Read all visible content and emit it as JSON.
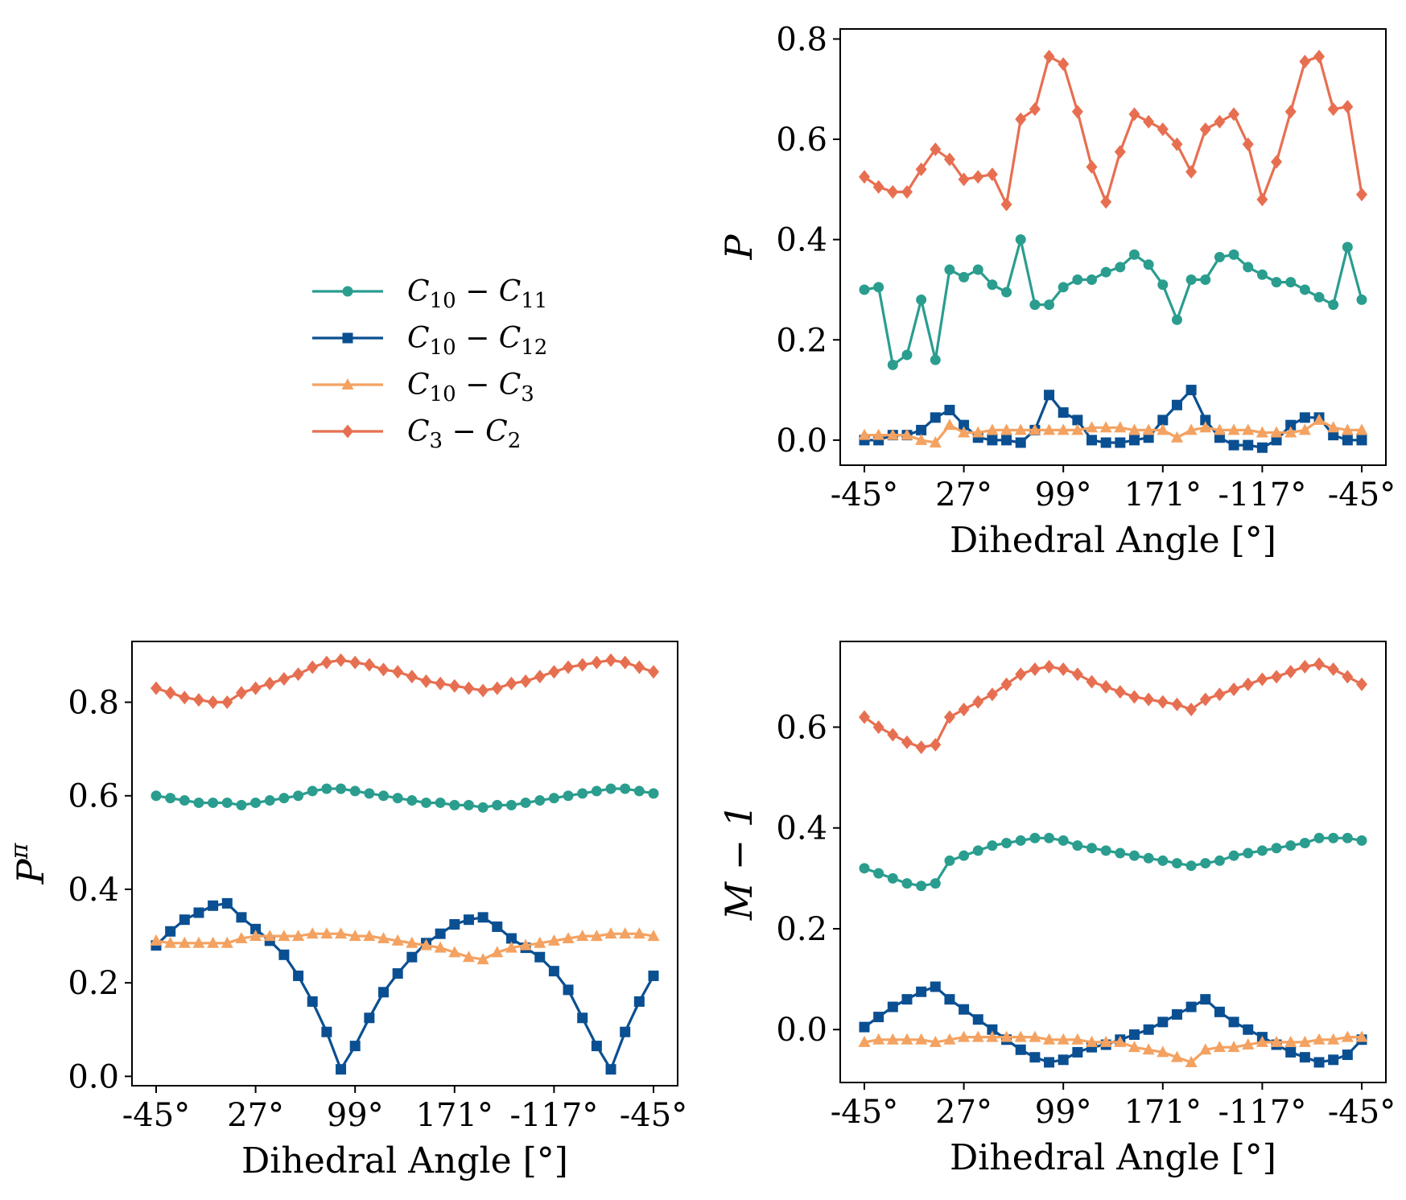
{
  "chart_data": [
    {
      "type": "line",
      "xlabel": "Dihedral Angle [°]",
      "ylabel": "P",
      "ylim": [
        -0.05,
        0.82
      ],
      "yticks": [
        0.0,
        0.2,
        0.4,
        0.6,
        0.8
      ],
      "ytick_labels": [
        "0.0",
        "0.2",
        "0.4",
        "0.6",
        "0.8"
      ],
      "xtick_labels": [
        "-45°",
        "27°",
        "99°",
        "171°",
        "-117°",
        "-45°"
      ],
      "grid": false,
      "series": [
        {
          "name": "C10-C11",
          "values": [
            0.3,
            0.305,
            0.15,
            0.17,
            0.28,
            0.16,
            0.34,
            0.325,
            0.34,
            0.31,
            0.295,
            0.4,
            0.27,
            0.27,
            0.305,
            0.32,
            0.32,
            0.335,
            0.345,
            0.37,
            0.35,
            0.31,
            0.24,
            0.32,
            0.32,
            0.365,
            0.37,
            0.345,
            0.33,
            0.315,
            0.315,
            0.3,
            0.285,
            0.27,
            0.385,
            0.28
          ]
        },
        {
          "name": "C10-C12",
          "values": [
            0.0,
            0.0,
            0.01,
            0.01,
            0.02,
            0.045,
            0.06,
            0.03,
            0.005,
            0.0,
            0.0,
            -0.005,
            0.02,
            0.09,
            0.055,
            0.04,
            0.0,
            -0.005,
            -0.005,
            0.0,
            0.005,
            0.04,
            0.07,
            0.1,
            0.04,
            0.005,
            -0.01,
            -0.01,
            -0.015,
            0.0,
            0.03,
            0.045,
            0.045,
            0.01,
            0.0,
            0.0
          ]
        },
        {
          "name": "C10-C3",
          "values": [
            0.01,
            0.01,
            0.01,
            0.01,
            0.0,
            -0.005,
            0.03,
            0.015,
            0.015,
            0.02,
            0.02,
            0.02,
            0.02,
            0.02,
            0.02,
            0.02,
            0.025,
            0.025,
            0.025,
            0.02,
            0.02,
            0.02,
            0.005,
            0.02,
            0.025,
            0.02,
            0.02,
            0.02,
            0.015,
            0.015,
            0.015,
            0.02,
            0.04,
            0.025,
            0.02,
            0.02
          ]
        },
        {
          "name": "C3-C2",
          "values": [
            0.525,
            0.505,
            0.495,
            0.495,
            0.54,
            0.58,
            0.56,
            0.52,
            0.525,
            0.53,
            0.47,
            0.64,
            0.66,
            0.765,
            0.75,
            0.655,
            0.545,
            0.475,
            0.575,
            0.65,
            0.635,
            0.62,
            0.59,
            0.535,
            0.62,
            0.635,
            0.65,
            0.59,
            0.48,
            0.555,
            0.655,
            0.755,
            0.765,
            0.66,
            0.665,
            0.49
          ]
        }
      ]
    },
    {
      "type": "line",
      "xlabel": "Dihedral Angle [°]",
      "ylabel": "P^π",
      "ylim": [
        -0.02,
        0.93
      ],
      "yticks": [
        0.0,
        0.2,
        0.4,
        0.6,
        0.8
      ],
      "ytick_labels": [
        "0.0",
        "0.2",
        "0.4",
        "0.6",
        "0.8"
      ],
      "xtick_labels": [
        "-45°",
        "27°",
        "99°",
        "171°",
        "-117°",
        "-45°"
      ],
      "grid": false,
      "series": [
        {
          "name": "C10-C11",
          "values": [
            0.6,
            0.595,
            0.59,
            0.585,
            0.585,
            0.585,
            0.58,
            0.585,
            0.59,
            0.595,
            0.6,
            0.61,
            0.615,
            0.615,
            0.61,
            0.605,
            0.6,
            0.595,
            0.59,
            0.585,
            0.585,
            0.58,
            0.58,
            0.575,
            0.58,
            0.58,
            0.585,
            0.59,
            0.595,
            0.6,
            0.605,
            0.61,
            0.615,
            0.615,
            0.61,
            0.605
          ]
        },
        {
          "name": "C10-C12",
          "values": [
            0.28,
            0.31,
            0.335,
            0.35,
            0.365,
            0.37,
            0.34,
            0.315,
            0.29,
            0.26,
            0.215,
            0.16,
            0.095,
            0.015,
            0.065,
            0.125,
            0.18,
            0.22,
            0.255,
            0.285,
            0.305,
            0.325,
            0.335,
            0.34,
            0.32,
            0.295,
            0.275,
            0.255,
            0.225,
            0.185,
            0.125,
            0.065,
            0.015,
            0.095,
            0.16,
            0.215
          ]
        },
        {
          "name": "C10-C3",
          "values": [
            0.29,
            0.285,
            0.285,
            0.285,
            0.285,
            0.285,
            0.295,
            0.3,
            0.3,
            0.3,
            0.3,
            0.305,
            0.305,
            0.305,
            0.3,
            0.3,
            0.295,
            0.29,
            0.285,
            0.28,
            0.275,
            0.265,
            0.255,
            0.25,
            0.265,
            0.275,
            0.28,
            0.285,
            0.29,
            0.295,
            0.3,
            0.3,
            0.305,
            0.305,
            0.305,
            0.3
          ]
        },
        {
          "name": "C3-C2",
          "values": [
            0.83,
            0.82,
            0.81,
            0.805,
            0.8,
            0.8,
            0.82,
            0.83,
            0.84,
            0.85,
            0.86,
            0.875,
            0.885,
            0.89,
            0.885,
            0.88,
            0.87,
            0.865,
            0.855,
            0.845,
            0.84,
            0.835,
            0.83,
            0.825,
            0.83,
            0.84,
            0.845,
            0.855,
            0.865,
            0.875,
            0.88,
            0.885,
            0.89,
            0.885,
            0.875,
            0.865
          ]
        }
      ]
    },
    {
      "type": "line",
      "xlabel": "Dihedral Angle [°]",
      "ylabel": "M − 1",
      "ylim": [
        -0.105,
        0.77
      ],
      "yticks": [
        0.0,
        0.2,
        0.4,
        0.6
      ],
      "ytick_labels": [
        "0.0",
        "0.2",
        "0.4",
        "0.6"
      ],
      "xtick_labels": [
        "-45°",
        "27°",
        "99°",
        "171°",
        "-117°",
        "-45°"
      ],
      "grid": false,
      "series": [
        {
          "name": "C10-C11",
          "values": [
            0.32,
            0.31,
            0.3,
            0.29,
            0.285,
            0.29,
            0.335,
            0.345,
            0.355,
            0.365,
            0.37,
            0.375,
            0.38,
            0.38,
            0.375,
            0.365,
            0.36,
            0.355,
            0.35,
            0.345,
            0.34,
            0.335,
            0.33,
            0.325,
            0.33,
            0.335,
            0.345,
            0.35,
            0.355,
            0.36,
            0.365,
            0.37,
            0.38,
            0.38,
            0.38,
            0.375
          ]
        },
        {
          "name": "C10-C12",
          "values": [
            0.005,
            0.025,
            0.045,
            0.06,
            0.075,
            0.085,
            0.06,
            0.04,
            0.02,
            0.0,
            -0.02,
            -0.04,
            -0.055,
            -0.065,
            -0.06,
            -0.045,
            -0.035,
            -0.03,
            -0.02,
            -0.01,
            0.0,
            0.015,
            0.03,
            0.045,
            0.06,
            0.035,
            0.015,
            0.0,
            -0.015,
            -0.03,
            -0.045,
            -0.055,
            -0.065,
            -0.06,
            -0.05,
            -0.02
          ]
        },
        {
          "name": "C10-C3",
          "values": [
            -0.025,
            -0.02,
            -0.02,
            -0.02,
            -0.02,
            -0.025,
            -0.02,
            -0.015,
            -0.015,
            -0.015,
            -0.015,
            -0.015,
            -0.015,
            -0.02,
            -0.02,
            -0.02,
            -0.025,
            -0.025,
            -0.025,
            -0.035,
            -0.04,
            -0.045,
            -0.055,
            -0.065,
            -0.04,
            -0.035,
            -0.035,
            -0.03,
            -0.025,
            -0.025,
            -0.025,
            -0.025,
            -0.02,
            -0.02,
            -0.015,
            -0.015
          ]
        },
        {
          "name": "C3-C2",
          "values": [
            0.62,
            0.6,
            0.585,
            0.57,
            0.56,
            0.565,
            0.62,
            0.635,
            0.65,
            0.665,
            0.685,
            0.705,
            0.715,
            0.72,
            0.715,
            0.705,
            0.69,
            0.68,
            0.67,
            0.66,
            0.655,
            0.65,
            0.645,
            0.635,
            0.655,
            0.665,
            0.675,
            0.685,
            0.695,
            0.7,
            0.71,
            0.72,
            0.725,
            0.715,
            0.7,
            0.685
          ]
        }
      ]
    }
  ],
  "legend": {
    "entries": [
      {
        "label_main": "C",
        "label_sub1": "10",
        "label_sep": " − C",
        "label_sub2": "11"
      },
      {
        "label_main": "C",
        "label_sub1": "10",
        "label_sep": " − C",
        "label_sub2": "12"
      },
      {
        "label_main": "C",
        "label_sub1": "10",
        "label_sep": " − C",
        "label_sub2": "3"
      },
      {
        "label_main": "C",
        "label_sub1": "3",
        "label_sep": " − C",
        "label_sub2": "2"
      }
    ]
  },
  "colors": {
    "C10-C11": "#2a9d8f",
    "C10-C12": "#0a4f91",
    "C10-C3": "#f4a261",
    "C3-C2": "#e76f51"
  },
  "markers": {
    "C10-C11": "circle",
    "C10-C12": "square",
    "C10-C3": "triangle",
    "C3-C2": "diamond"
  }
}
